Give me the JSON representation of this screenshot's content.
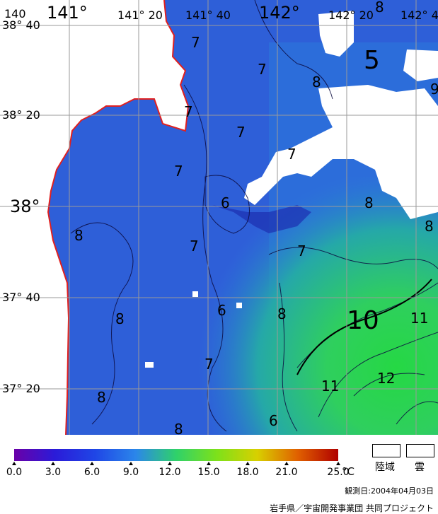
{
  "map": {
    "colors": {
      "land": "#ffffff",
      "coastline": "#e02020",
      "grid": "#9a9a9a",
      "cloud": "#ffffff"
    },
    "lon_labels": [
      "140",
      "141°",
      "141° 20",
      "141° 40",
      "142°",
      "142° 20",
      "142° 4"
    ],
    "lat_labels": [
      "38° 40",
      "38° 20",
      "38°",
      "37° 40",
      "37° 20"
    ],
    "contour_labels": [
      "7",
      "7",
      "7",
      "7",
      "7",
      "7",
      "7",
      "7",
      "7",
      "5",
      "9",
      "8",
      "8",
      "8",
      "8",
      "8",
      "8",
      "8",
      "6",
      "6",
      "6",
      "10",
      "11",
      "11",
      "12",
      "8",
      "8"
    ]
  },
  "colorbar": {
    "ticks": [
      "0.0",
      "3.0",
      "6.0",
      "9.0",
      "12.0",
      "15.0",
      "18.0",
      "21.0",
      "25.0"
    ],
    "unit": "°C",
    "colors": [
      "#6a00a8",
      "#2b1bd8",
      "#1f46e6",
      "#2b86ea",
      "#2fd16a",
      "#7de11a",
      "#d8d000",
      "#e06000",
      "#b00000"
    ]
  },
  "legend": {
    "land": "陸域",
    "cloud": "雲"
  },
  "observation_date": "観測日:2004年04月03日",
  "credit": "岩手県／宇宙開発事業団 共同プロジェクト"
}
